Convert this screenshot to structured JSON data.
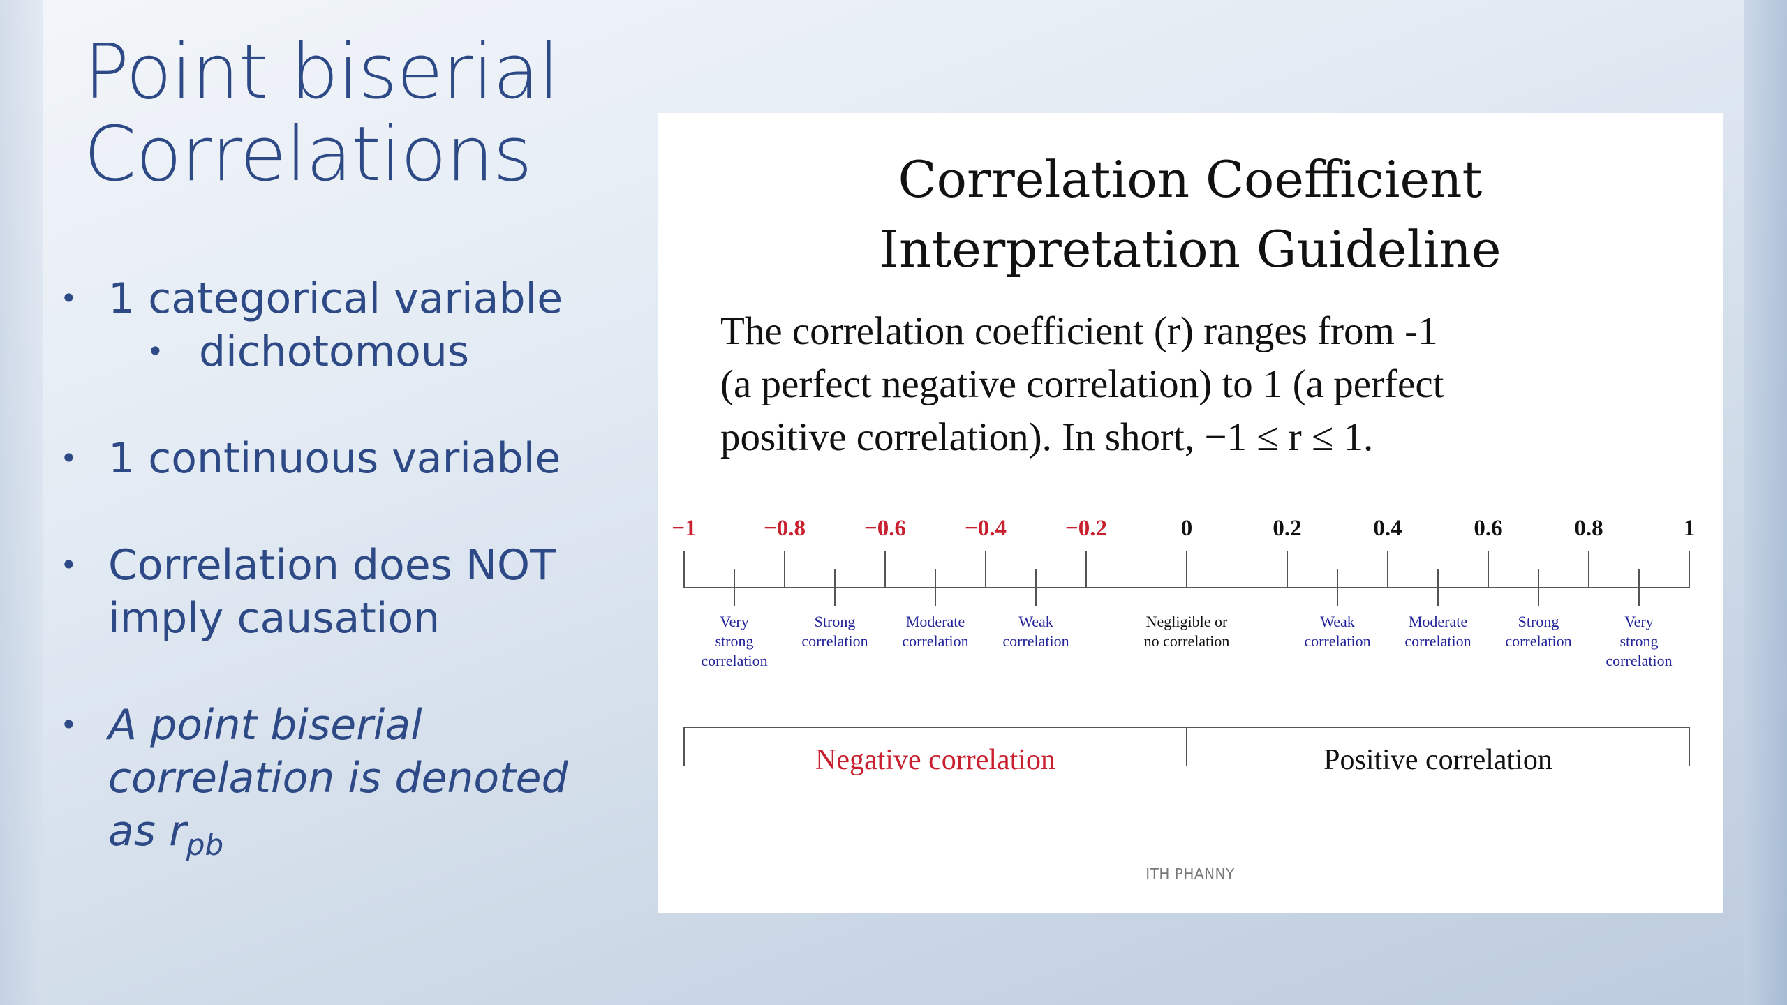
{
  "slide": {
    "title_line1": "Point biserial",
    "title_line2": "Correlations",
    "bullets": {
      "categorical": "1 categorical variable",
      "dichotomous": "dichotomous",
      "continuous": "1 continuous variable",
      "causation_line1": "Correlation does NOT",
      "causation_line2": "imply causation",
      "denoted_line1": "A point biserial",
      "denoted_line2": "correlation is denoted",
      "denoted_line3_prefix": "as r",
      "denoted_subscript": "pb"
    },
    "bullet_glyph": "•"
  },
  "card": {
    "title_line1": "Correlation Coefficient",
    "title_line2": "Interpretation Guideline",
    "body_line1": "The correlation coefficient (r) ranges from -1",
    "body_line2": "(a perfect negative correlation) to 1 (a perfect",
    "body_line3": "positive correlation). In short, −1 ≤ r ≤ 1.",
    "footer": "ITH PHANNY"
  },
  "colors": {
    "title_blue": "#2e4a86",
    "negative_red": "#c8202e",
    "category_blue": "#23239a",
    "axis_gray": "#555555"
  },
  "chart_data": {
    "type": "number-line",
    "xlim": [
      -1,
      1
    ],
    "major_ticks": [
      {
        "value": -1,
        "label": "−1",
        "color": "red"
      },
      {
        "value": -0.8,
        "label": "−0.8",
        "color": "red"
      },
      {
        "value": -0.6,
        "label": "−0.6",
        "color": "red"
      },
      {
        "value": -0.4,
        "label": "−0.4",
        "color": "red"
      },
      {
        "value": -0.2,
        "label": "−0.2",
        "color": "red"
      },
      {
        "value": 0,
        "label": "0",
        "color": "black"
      },
      {
        "value": 0.2,
        "label": "0.2",
        "color": "black"
      },
      {
        "value": 0.4,
        "label": "0.4",
        "color": "black"
      },
      {
        "value": 0.6,
        "label": "0.6",
        "color": "black"
      },
      {
        "value": 0.8,
        "label": "0.8",
        "color": "black"
      },
      {
        "value": 1,
        "label": "1",
        "color": "black"
      }
    ],
    "categories": [
      {
        "center": -0.9,
        "lines": [
          "Very",
          "strong",
          "correlation"
        ],
        "color": "blue"
      },
      {
        "center": -0.7,
        "lines": [
          "Strong",
          "correlation"
        ],
        "color": "blue"
      },
      {
        "center": -0.5,
        "lines": [
          "Moderate",
          "correlation"
        ],
        "color": "blue"
      },
      {
        "center": -0.3,
        "lines": [
          "Weak",
          "correlation"
        ],
        "color": "blue"
      },
      {
        "center": 0,
        "lines": [
          "Negligible or",
          "no correlation"
        ],
        "color": "black",
        "no_tick": true
      },
      {
        "center": 0.3,
        "lines": [
          "Weak",
          "correlation"
        ],
        "color": "blue"
      },
      {
        "center": 0.5,
        "lines": [
          "Moderate",
          "correlation"
        ],
        "color": "blue"
      },
      {
        "center": 0.7,
        "lines": [
          "Strong",
          "correlation"
        ],
        "color": "blue"
      },
      {
        "center": 0.9,
        "lines": [
          "Very",
          "strong",
          "correlation"
        ],
        "color": "blue"
      }
    ],
    "ranges": [
      {
        "from": -1,
        "to": 0,
        "label": "Negative correlation",
        "color": "red"
      },
      {
        "from": 0,
        "to": 1,
        "label": "Positive correlation",
        "color": "black"
      }
    ]
  }
}
